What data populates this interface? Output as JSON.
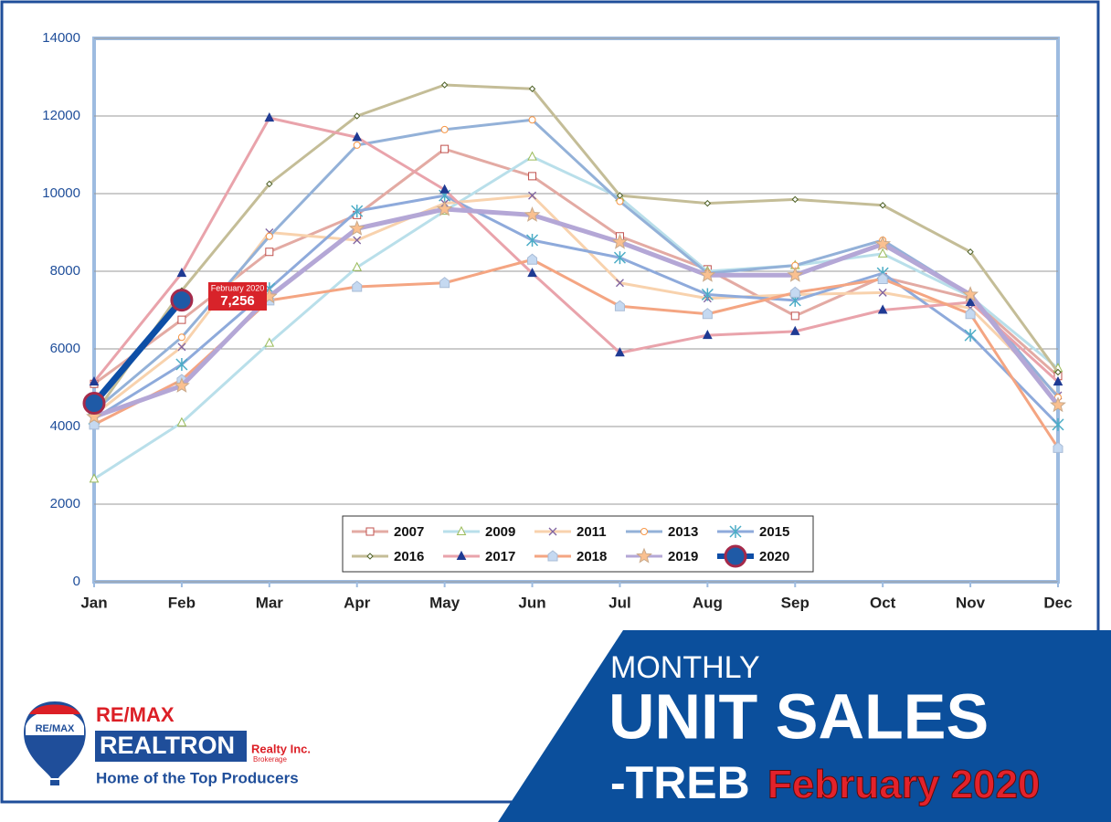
{
  "chart_data": {
    "type": "line",
    "categories": [
      "Jan",
      "Feb",
      "Mar",
      "Apr",
      "May",
      "Jun",
      "Jul",
      "Aug",
      "Sep",
      "Oct",
      "Nov",
      "Dec"
    ],
    "ylim": [
      0,
      14000
    ],
    "yticks": [
      0,
      2000,
      4000,
      6000,
      8000,
      10000,
      12000,
      14000
    ],
    "grid": true,
    "series": [
      {
        "name": "2007",
        "color": "#e3aaa3",
        "marker": "square",
        "marker_color": "#c0504d",
        "values": [
          5100,
          6750,
          8500,
          9450,
          11150,
          10450,
          8900,
          8050,
          6850,
          7850,
          7300,
          5300
        ]
      },
      {
        "name": "2009",
        "color": "#b9dfea",
        "marker": "triangle",
        "marker_color": "#9bbb59",
        "values": [
          2650,
          4100,
          6150,
          8100,
          9550,
          10950,
          9900,
          8000,
          8150,
          8450,
          7350,
          5500
        ]
      },
      {
        "name": "2011",
        "color": "#f8d2ad",
        "marker": "x",
        "marker_color": "#8064a2",
        "values": [
          4300,
          6050,
          9000,
          8800,
          9750,
          9950,
          7700,
          7300,
          7400,
          7450,
          7050,
          4800
        ]
      },
      {
        "name": "2013",
        "color": "#93b1d8",
        "marker": "circle",
        "marker_color": "#f79646",
        "values": [
          4400,
          6300,
          8900,
          11250,
          11650,
          11900,
          9800,
          7950,
          8150,
          8800,
          7400,
          4750
        ]
      },
      {
        "name": "2015",
        "color": "#8eaadb",
        "marker": "asterisk",
        "marker_color": "#4bacc6",
        "values": [
          4200,
          5600,
          7550,
          9550,
          9950,
          8800,
          8350,
          7400,
          7250,
          7950,
          6350,
          4050
        ]
      },
      {
        "name": "2016",
        "color": "#c4bd97",
        "marker": "diamond",
        "marker_color": "#4f6228",
        "values": [
          4300,
          7500,
          10250,
          12000,
          12800,
          12700,
          9950,
          9750,
          9850,
          9700,
          8500,
          5400
        ]
      },
      {
        "name": "2017",
        "color": "#e9a3ab",
        "marker": "filledtriangle",
        "marker_color": "#1f3a93",
        "values": [
          5150,
          7950,
          11950,
          11450,
          10100,
          7950,
          5900,
          6350,
          6450,
          7000,
          7200,
          5150
        ]
      },
      {
        "name": "2018",
        "color": "#f4a582",
        "marker": "house",
        "marker_color": "#c5d9f1",
        "values": [
          4050,
          5200,
          7250,
          7600,
          7700,
          8300,
          7100,
          6900,
          7450,
          7800,
          6900,
          3450
        ]
      },
      {
        "name": "2019",
        "color": "#b4a7d6",
        "marker": "star",
        "marker_color": "#fac090",
        "values": [
          4250,
          5050,
          7350,
          9100,
          9600,
          9450,
          8750,
          7900,
          7900,
          8700,
          7400,
          4550
        ]
      },
      {
        "name": "2020",
        "color": "#0d4ea6",
        "marker": "bigcircle",
        "marker_color": "#1f5aa6",
        "values": [
          4600,
          7256,
          null,
          null,
          null,
          null,
          null,
          null,
          null,
          null,
          null,
          null
        ],
        "value_labels": [
          null,
          "7,256",
          null,
          null,
          null,
          null,
          null,
          null,
          null,
          null,
          null,
          null
        ]
      }
    ],
    "annotation": "February 2020"
  },
  "banner": {
    "line1": "MONTHLY",
    "line2": "UNIT SALES",
    "line3": "-TREB",
    "line4": "February 2020"
  },
  "logo": {
    "brand": "RE/MAX",
    "name": "REALTRON",
    "suffix": "Realty Inc.",
    "sub": "Brokerage",
    "tagline": "Home of the Top Producers",
    "balloon": "RE/MAX"
  }
}
